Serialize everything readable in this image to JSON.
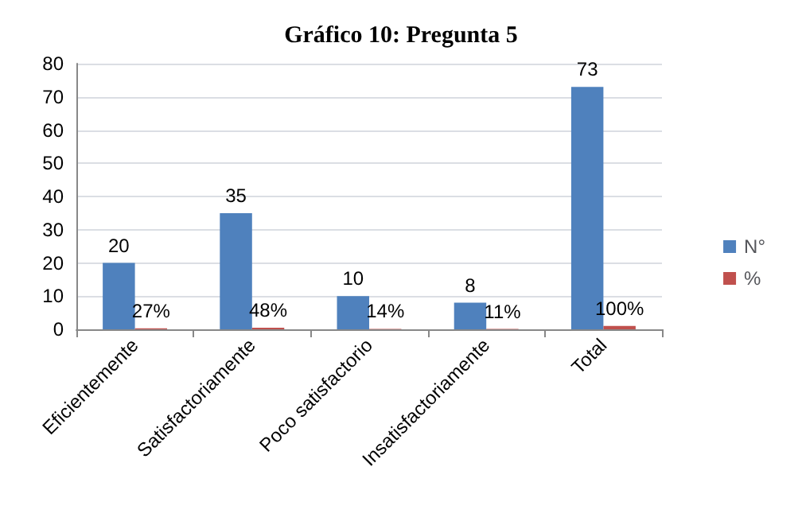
{
  "chart_data": {
    "type": "bar",
    "title": "Gráfico 10: Pregunta 5",
    "categories": [
      "Eficientemente",
      "Satisfactoriamente",
      "Poco satisfactorio",
      "Insatisfactoriamente",
      "Total"
    ],
    "series": [
      {
        "name": "N°",
        "color": "#4f81bd",
        "values": [
          20,
          35,
          10,
          8,
          73
        ],
        "value_labels": [
          "20",
          "35",
          "10",
          "8",
          "73"
        ]
      },
      {
        "name": "%",
        "color": "#c0504d",
        "values": [
          0.27,
          0.48,
          0.14,
          0.11,
          1
        ],
        "value_labels": [
          "27%",
          "48%",
          "14%",
          "11%",
          "100%"
        ]
      }
    ],
    "ylim": [
      0,
      80
    ],
    "yticks": [
      0,
      10,
      20,
      30,
      40,
      50,
      60,
      70,
      80
    ],
    "grid": "y",
    "legend": "right"
  }
}
